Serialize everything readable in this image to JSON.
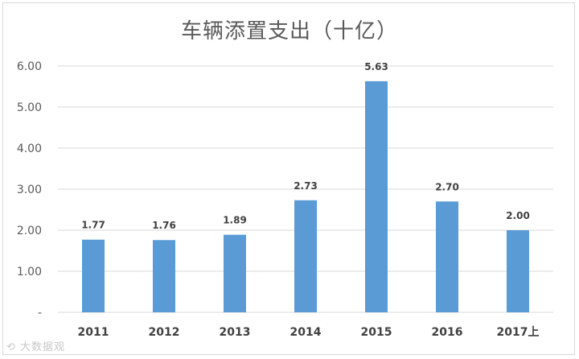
{
  "chart_data": {
    "type": "bar",
    "title": "车辆添置支出（十亿）",
    "categories": [
      "2011",
      "2012",
      "2013",
      "2014",
      "2015",
      "2016",
      "2017上"
    ],
    "values": [
      1.77,
      1.76,
      1.89,
      2.73,
      5.63,
      2.7,
      2.0
    ],
    "data_labels": [
      "1.77",
      "1.76",
      "1.89",
      "2.73",
      "5.63",
      "2.70",
      "2.00"
    ],
    "ylim": [
      0,
      6
    ],
    "yticks": [
      0,
      1,
      2,
      3,
      4,
      5,
      6
    ],
    "ytick_labels": [
      "-",
      "1.00",
      "2.00",
      "3.00",
      "4.00",
      "5.00",
      "6.00"
    ],
    "xlabel": "",
    "ylabel": "",
    "grid": true,
    "bar_color": "#5b9bd5",
    "grid_color": "#d9d9d9"
  },
  "watermark": "大数据观"
}
